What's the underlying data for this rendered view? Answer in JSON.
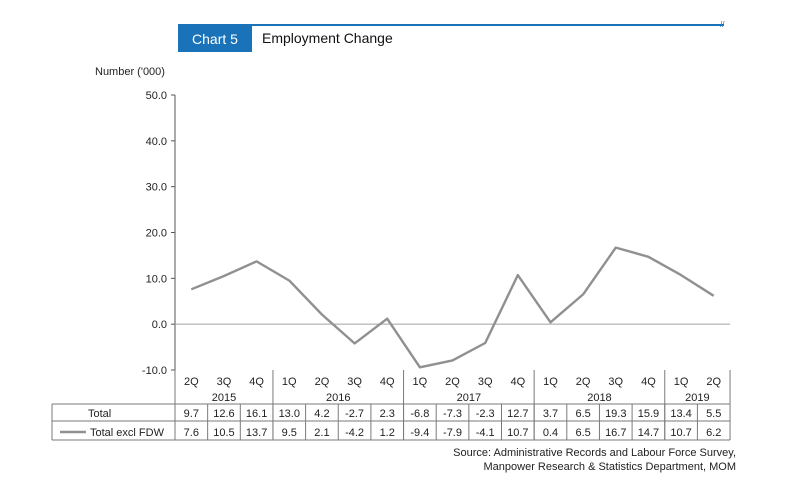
{
  "header": {
    "badge": "Chart 5",
    "title": "Employment Change"
  },
  "colors": {
    "accent": "#1a73b8",
    "series": "#909090"
  },
  "chart_data": {
    "type": "line",
    "ylabel": "Number ('000)",
    "ylim": [
      -10,
      50
    ],
    "yticks": [
      "50.0",
      "40.0",
      "30.0",
      "20.0",
      "10.0",
      "0.0",
      "-10.0"
    ],
    "categories": [
      "2Q",
      "3Q",
      "4Q",
      "1Q",
      "2Q",
      "3Q",
      "4Q",
      "1Q",
      "2Q",
      "3Q",
      "4Q",
      "1Q",
      "2Q",
      "3Q",
      "4Q",
      "1Q",
      "2Q"
    ],
    "years": [
      {
        "label": "2015",
        "start": 0,
        "end": 2
      },
      {
        "label": "2016",
        "start": 3,
        "end": 6
      },
      {
        "label": "2017",
        "start": 7,
        "end": 10
      },
      {
        "label": "2018",
        "start": 11,
        "end": 14
      },
      {
        "label": "2019",
        "start": 15,
        "end": 16
      }
    ],
    "table": [
      {
        "name": "Total",
        "values": [
          "9.7",
          "12.6",
          "16.1",
          "13.0",
          "4.2",
          "-2.7",
          "2.3",
          "-6.8",
          "-7.3",
          "-2.3",
          "12.7",
          "3.7",
          "6.5",
          "19.3",
          "15.9",
          "13.4",
          "5.5"
        ]
      },
      {
        "name": "Total excl FDW",
        "values": [
          "7.6",
          "10.5",
          "13.7",
          "9.5",
          "2.1",
          "-4.2",
          "1.2",
          "-9.4",
          "-7.9",
          "-4.1",
          "10.7",
          "0.4",
          "6.5",
          "16.7",
          "14.7",
          "10.7",
          "6.2"
        ]
      }
    ],
    "series": [
      {
        "name": "Total excl FDW",
        "values": [
          7.6,
          10.5,
          13.7,
          9.5,
          2.1,
          -4.2,
          1.2,
          -9.4,
          -7.9,
          -4.1,
          10.7,
          0.4,
          6.5,
          16.7,
          14.7,
          10.7,
          6.2
        ]
      }
    ],
    "grid": false,
    "legend": "table"
  },
  "source": {
    "line1": "Source: Administrative Records and Labour Force Survey,",
    "line2": "Manpower Research & Statistics Department, MOM"
  }
}
